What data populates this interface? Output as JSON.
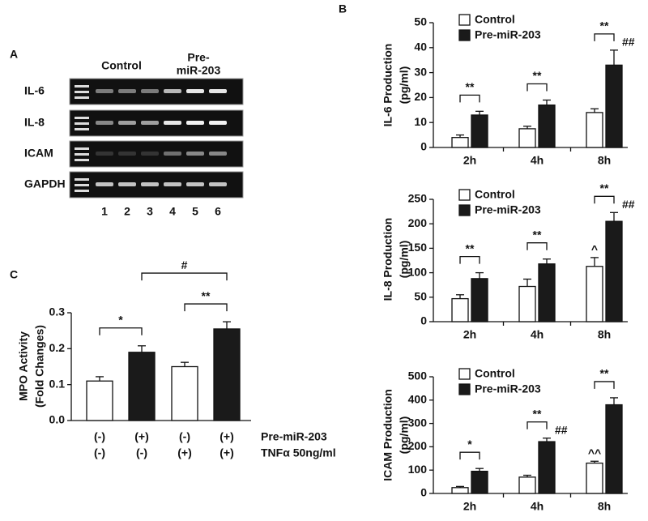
{
  "gel": {
    "panel_label": "A",
    "groups": [
      {
        "lines": [
          "Control"
        ]
      },
      {
        "lines": [
          "Pre-",
          "miR-203"
        ]
      }
    ],
    "rows": [
      "IL-6",
      "IL-8",
      "ICAM",
      "GAPDH"
    ],
    "lanes": [
      "1",
      "2",
      "3",
      "4",
      "5",
      "6"
    ]
  },
  "chart_data": [
    {
      "type": "bar",
      "panel_label": "B",
      "ylabel": [
        "IL-6 Production",
        "(pg/ml)"
      ],
      "categories": [
        "2h",
        "4h",
        "8h"
      ],
      "series": [
        {
          "name": "Control",
          "color": "#ffffff",
          "values": [
            4,
            7.5,
            14
          ],
          "errors": [
            1,
            1,
            1.5
          ],
          "significance": [
            null,
            null,
            null
          ]
        },
        {
          "name": "Pre-miR-203",
          "color": "#1a1a1a",
          "values": [
            13,
            17,
            33
          ],
          "errors": [
            1.5,
            2,
            6
          ],
          "significance": [
            null,
            null,
            "##"
          ]
        }
      ],
      "comparisons": [
        "**",
        "**",
        "**"
      ],
      "ylim": [
        0,
        50
      ],
      "yticks": [
        0,
        10,
        20,
        30,
        40,
        50
      ]
    },
    {
      "type": "bar",
      "ylabel": [
        "IL-8 Production",
        "(pg/ml)"
      ],
      "categories": [
        "2h",
        "4h",
        "8h"
      ],
      "series": [
        {
          "name": "Control",
          "color": "#ffffff",
          "values": [
            47,
            72,
            113
          ],
          "errors": [
            8,
            15,
            18
          ],
          "significance": [
            null,
            null,
            "^"
          ]
        },
        {
          "name": "Pre-miR-203",
          "color": "#1a1a1a",
          "values": [
            88,
            118,
            205
          ],
          "errors": [
            12,
            10,
            18
          ],
          "significance": [
            null,
            null,
            "##"
          ]
        }
      ],
      "comparisons": [
        "**",
        "**",
        "**"
      ],
      "ylim": [
        0,
        250
      ],
      "yticks": [
        0,
        50,
        100,
        150,
        200,
        250
      ]
    },
    {
      "type": "bar",
      "ylabel": [
        "ICAM Production",
        "(pg/ml)"
      ],
      "categories": [
        "2h",
        "4h",
        "8h"
      ],
      "series": [
        {
          "name": "Control",
          "color": "#ffffff",
          "values": [
            25,
            70,
            130
          ],
          "errors": [
            5,
            8,
            8
          ],
          "significance": [
            null,
            null,
            "^^"
          ]
        },
        {
          "name": "Pre-miR-203",
          "color": "#1a1a1a",
          "values": [
            95,
            222,
            380
          ],
          "errors": [
            12,
            15,
            30
          ],
          "significance": [
            null,
            "##",
            null
          ]
        }
      ],
      "comparisons": [
        "*",
        "**",
        "**"
      ],
      "ylim": [
        0,
        500
      ],
      "yticks": [
        0,
        100,
        200,
        300,
        400,
        500
      ]
    },
    {
      "type": "conditionbar",
      "panel_label": "C",
      "ylabel": [
        "MPO Activity",
        "(Fold Changes)"
      ],
      "values": [
        0.11,
        0.19,
        0.15,
        0.255
      ],
      "errors": [
        0.012,
        0.018,
        0.012,
        0.02
      ],
      "colors": [
        "#ffffff",
        "#1a1a1a",
        "#ffffff",
        "#1a1a1a"
      ],
      "conditions": [
        {
          "label": "Pre-miR-203",
          "values": [
            "(-)",
            "(+)",
            "(-)",
            "(+)"
          ]
        },
        {
          "label": "TNFα 50ng/ml",
          "values": [
            "(-)",
            "(-)",
            "(+)",
            "(+)"
          ]
        }
      ],
      "comparisons": [
        "*",
        "**",
        "#"
      ],
      "ylim": [
        0,
        0.3
      ],
      "yticks": [
        {
          "value": 0,
          "label": "0.0"
        },
        0.1,
        0.2,
        0.3
      ]
    }
  ]
}
